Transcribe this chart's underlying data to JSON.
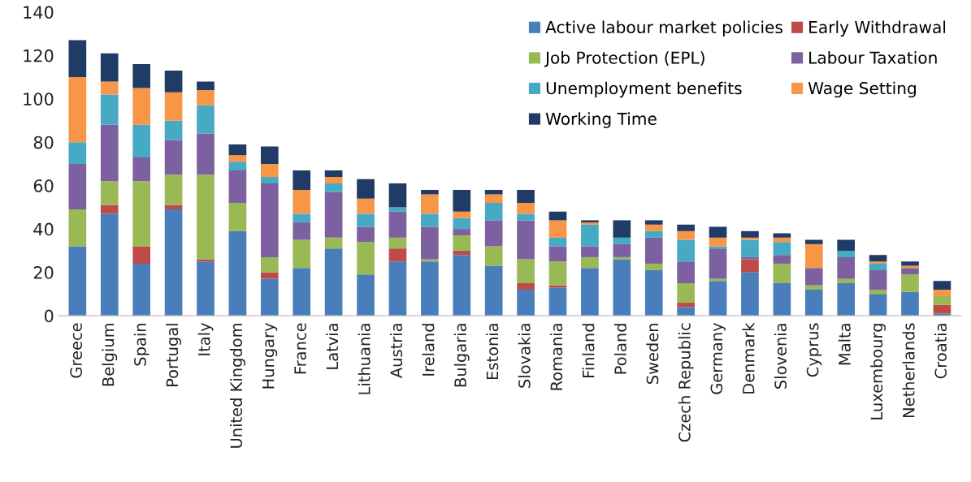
{
  "chart_data": {
    "type": "bar",
    "stacked": true,
    "legend": "top right",
    "grid": false,
    "categories": [
      "Greece",
      "Belgium",
      "Spain",
      "Portugal",
      "Italy",
      "United Kingdom",
      "Hungary",
      "France",
      "Latvia",
      "Lithuania",
      "Austria",
      "Ireland",
      "Bulgaria",
      "Estonia",
      "Slovakia",
      "Romania",
      "Finland",
      "Poland",
      "Sweden",
      "Czech Republic",
      "Germany",
      "Denmark",
      "Slovenia",
      "Cyprus",
      "Malta",
      "Luxembourg",
      "Netherlands",
      "Croatia"
    ],
    "ylim": [
      0,
      140
    ],
    "yticks": [
      0,
      20,
      40,
      60,
      80,
      100,
      120,
      140
    ],
    "series": [
      {
        "name": "Active labour market policies",
        "color": "#4a7ebb",
        "values": [
          32,
          47,
          24,
          49,
          25,
          39,
          17,
          22,
          31,
          19,
          25,
          25,
          28,
          23,
          12,
          13,
          22,
          26,
          21,
          4,
          16,
          20,
          15,
          12,
          15,
          10,
          11,
          1
        ]
      },
      {
        "name": "Early Withdrawal",
        "color": "#be4b48",
        "values": [
          0,
          4,
          8,
          2,
          1,
          0,
          3,
          0,
          0,
          0,
          6,
          0,
          2,
          0,
          3,
          1,
          0,
          0,
          0,
          2,
          0,
          6,
          0,
          0,
          0,
          0,
          0,
          4
        ]
      },
      {
        "name": "Job Protection (EPL)",
        "color": "#98b954",
        "values": [
          17,
          11,
          30,
          14,
          39,
          13,
          7,
          13,
          5,
          15,
          5,
          1,
          7,
          9,
          11,
          11,
          5,
          1,
          3,
          9,
          1,
          0,
          9,
          2,
          2,
          2,
          8,
          4
        ]
      },
      {
        "name": "Labour Taxation",
        "color": "#7d60a0",
        "values": [
          21,
          26,
          11,
          16,
          19,
          15,
          34,
          8,
          21,
          7,
          12,
          15,
          3,
          12,
          18,
          7,
          5,
          6,
          12,
          10,
          14,
          1,
          4,
          8,
          10,
          9,
          3,
          0
        ]
      },
      {
        "name": "Unemployment benefits",
        "color": "#46aac5",
        "values": [
          10,
          14,
          15,
          9,
          13,
          4,
          3,
          4,
          4,
          6,
          2,
          6,
          5,
          8,
          3,
          4,
          10,
          3,
          3,
          10,
          1,
          8,
          6,
          0,
          3,
          3,
          0,
          0
        ]
      },
      {
        "name": "Wage Setting",
        "color": "#f79646",
        "values": [
          30,
          6,
          17,
          13,
          7,
          3,
          6,
          11,
          3,
          7,
          0,
          9,
          3,
          4,
          5,
          8,
          1,
          0,
          3,
          4,
          4,
          1,
          2,
          11,
          0,
          1,
          1,
          3
        ]
      },
      {
        "name": "Working Time",
        "color": "#1f3b66",
        "values": [
          17,
          13,
          11,
          10,
          4,
          5,
          8,
          9,
          3,
          9,
          11,
          2,
          10,
          2,
          6,
          4,
          1,
          8,
          2,
          3,
          5,
          3,
          2,
          2,
          5,
          3,
          2,
          4
        ]
      }
    ]
  }
}
